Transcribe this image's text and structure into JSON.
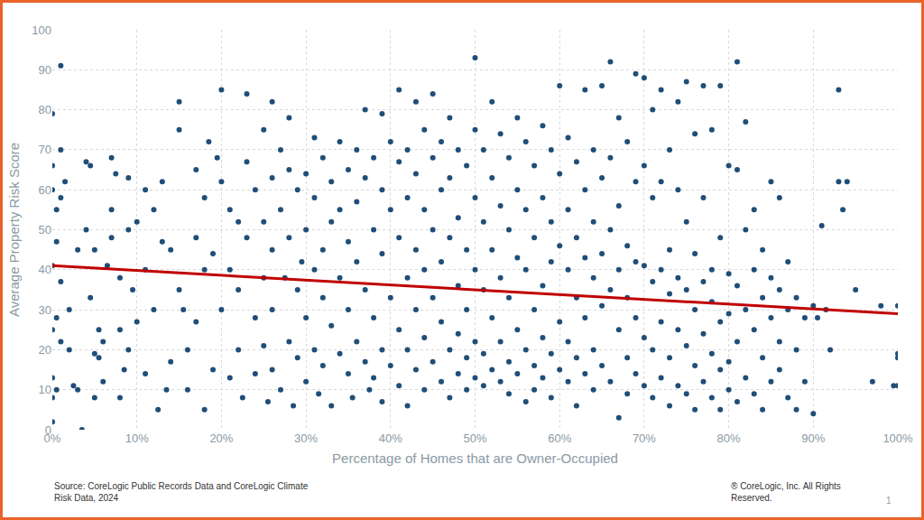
{
  "chart_data": {
    "type": "scatter",
    "x_label": "Percentage of Homes that are Owner-Occupied",
    "y_label": "Average Property Risk Score",
    "xlim": [
      0,
      100
    ],
    "ylim": [
      0,
      100
    ],
    "xticks": [
      {
        "value": 0,
        "label": "0%"
      },
      {
        "value": 10,
        "label": "10%"
      },
      {
        "value": 20,
        "label": "20%"
      },
      {
        "value": 30,
        "label": "30%"
      },
      {
        "value": 40,
        "label": "40%"
      },
      {
        "value": 50,
        "label": "50%"
      },
      {
        "value": 60,
        "label": "60%"
      },
      {
        "value": 70,
        "label": "70%"
      },
      {
        "value": 80,
        "label": "80%"
      },
      {
        "value": 90,
        "label": "90%"
      },
      {
        "value": 100,
        "label": "100%"
      }
    ],
    "yticks": [
      0,
      10,
      20,
      30,
      40,
      50,
      60,
      70,
      80,
      90,
      100
    ],
    "grid": true,
    "source": [
      "Source: CoreLogic Public Records Data and CoreLogic Climate",
      "Risk Data, 2024"
    ],
    "copyright": [
      "® CoreLogic, Inc. All Rights",
      "Reserved."
    ],
    "page": "1",
    "series": [
      {
        "type": "scatter",
        "color": "#1f4e79",
        "marker": "circle",
        "x": [
          0,
          0,
          0,
          0.5,
          1,
          1,
          0.5,
          0,
          1,
          0.5,
          0,
          1,
          0,
          0.5,
          0,
          0,
          1,
          1.5,
          2,
          3.5,
          3,
          2.5,
          4,
          4.5,
          4,
          5,
          4.5,
          5,
          5.5,
          5,
          6,
          6.5,
          7,
          7,
          7.5,
          8,
          8,
          8.5,
          9,
          9.5,
          9,
          10,
          10,
          7,
          6,
          3,
          2,
          5.5,
          8,
          9,
          11,
          11,
          11,
          12,
          12,
          12.5,
          13,
          13,
          13.5,
          14,
          14,
          15,
          15,
          15,
          15.5,
          16,
          16,
          17,
          17,
          17,
          18,
          18,
          18,
          18.5,
          19,
          19,
          19.5,
          20,
          20,
          20,
          21,
          21,
          21,
          22,
          22,
          22,
          22.5,
          23,
          23,
          23,
          24,
          24,
          24,
          25,
          25,
          25,
          25,
          25.5,
          26,
          26,
          26,
          26,
          26,
          27,
          27,
          27,
          27.5,
          28,
          28,
          28,
          28,
          28.5,
          29,
          29,
          29,
          29.5,
          30,
          30,
          30,
          30,
          31,
          31,
          31,
          31,
          31.5,
          32,
          32,
          32,
          32,
          33,
          33,
          33,
          33,
          34,
          34,
          34,
          34,
          35,
          35,
          35,
          35,
          35.5,
          36,
          36,
          36,
          36,
          37,
          37,
          37,
          37,
          37.5,
          38,
          38,
          38,
          38,
          39,
          39,
          39,
          39,
          39,
          40,
          40,
          40,
          40,
          41,
          41,
          41,
          41,
          41,
          42,
          42,
          42,
          42,
          42,
          43,
          43,
          43,
          43,
          43,
          44,
          44,
          44,
          44,
          44,
          45,
          45,
          45,
          45,
          45,
          46,
          46,
          46,
          46,
          46,
          47,
          47,
          47,
          47,
          47,
          48,
          48,
          48,
          48,
          48,
          49,
          49,
          49,
          49,
          49,
          50,
          50,
          50,
          50,
          50,
          50,
          51,
          51,
          51,
          51,
          51,
          52,
          52,
          52,
          52,
          52,
          53,
          53,
          53,
          53,
          53,
          54,
          54,
          54,
          54,
          54,
          55,
          55,
          55,
          55,
          55,
          56,
          56,
          56,
          56,
          56,
          57,
          57,
          57,
          57,
          57,
          58,
          58,
          58,
          58,
          58,
          59,
          59,
          59,
          59,
          59,
          60,
          60,
          60,
          60,
          60,
          61,
          61,
          61,
          61,
          61,
          62,
          62,
          62,
          62,
          62,
          63,
          63,
          63,
          63,
          63,
          64,
          64,
          64,
          64,
          64,
          65,
          65,
          65,
          65,
          65,
          66,
          66,
          66,
          66,
          66,
          67,
          67,
          67,
          67,
          67,
          68,
          68,
          68,
          68,
          68,
          69,
          69,
          69,
          69,
          69,
          70,
          70,
          70,
          70,
          70,
          71,
          71,
          71,
          71,
          71,
          72,
          72,
          72,
          72,
          72,
          73,
          73,
          73,
          73,
          73,
          74,
          74,
          74,
          74,
          74,
          75,
          75,
          75,
          75,
          75,
          76,
          76,
          76,
          76,
          76,
          77,
          77,
          77,
          77,
          77,
          78,
          78,
          78,
          78,
          78,
          79,
          79,
          79,
          79,
          79,
          80,
          80,
          80,
          80,
          80,
          81,
          81,
          81,
          81,
          81,
          82,
          82,
          82,
          82,
          83,
          83,
          83,
          83,
          84,
          84,
          84,
          84,
          85,
          85,
          85,
          85,
          86,
          86,
          86,
          86,
          87,
          87,
          87,
          88,
          88,
          88,
          89,
          89,
          90,
          90,
          90.5,
          91,
          91.5,
          92,
          93,
          93,
          93.5,
          94,
          95,
          97,
          98,
          99.5,
          100,
          100,
          100,
          100
        ],
        "values": [
          79,
          66,
          60,
          55,
          91,
          70,
          47,
          41,
          37,
          28,
          25,
          22,
          13,
          10,
          8,
          2,
          58,
          62,
          30,
          0,
          10,
          11,
          67,
          66,
          50,
          45,
          33,
          19,
          18,
          8,
          12,
          41,
          55,
          68,
          64,
          38,
          25,
          15,
          50,
          35,
          20,
          52,
          27,
          48,
          22,
          45,
          20,
          25,
          8,
          63,
          40,
          60,
          14,
          55,
          30,
          5,
          47,
          62,
          10,
          45,
          17,
          82,
          75,
          35,
          30,
          20,
          10,
          65,
          48,
          27,
          58,
          40,
          5,
          72,
          44,
          15,
          68,
          85,
          62,
          30,
          55,
          40,
          13,
          52,
          35,
          20,
          8,
          67,
          48,
          84,
          60,
          28,
          14,
          75,
          52,
          38,
          21,
          7,
          82,
          63,
          45,
          30,
          15,
          70,
          55,
          10,
          38,
          78,
          65,
          48,
          22,
          6,
          60,
          35,
          18,
          42,
          64,
          50,
          28,
          12,
          73,
          58,
          40,
          20,
          9,
          68,
          45,
          33,
          16,
          62,
          52,
          26,
          6,
          72,
          55,
          38,
          19,
          65,
          47,
          30,
          14,
          8,
          70,
          57,
          42,
          22,
          80,
          63,
          35,
          17,
          10,
          68,
          50,
          28,
          13,
          79,
          60,
          44,
          20,
          7,
          72,
          55,
          33,
          16,
          85,
          67,
          48,
          25,
          11,
          70,
          58,
          38,
          20,
          6,
          82,
          64,
          45,
          30,
          15,
          75,
          55,
          40,
          23,
          10,
          84,
          68,
          50,
          33,
          17,
          72,
          60,
          42,
          27,
          12,
          78,
          63,
          48,
          20,
          8,
          70,
          53,
          36,
          24,
          14,
          66,
          45,
          30,
          18,
          10,
          93,
          75,
          58,
          40,
          22,
          13,
          70,
          52,
          35,
          19,
          11,
          82,
          63,
          45,
          28,
          15,
          74,
          56,
          38,
          22,
          12,
          68,
          50,
          33,
          17,
          9,
          78,
          60,
          43,
          25,
          14,
          72,
          55,
          40,
          20,
          7,
          66,
          48,
          30,
          16,
          10,
          76,
          58,
          36,
          23,
          13,
          70,
          52,
          42,
          19,
          8,
          86,
          64,
          46,
          27,
          15,
          73,
          55,
          40,
          22,
          12,
          67,
          48,
          33,
          18,
          6,
          85,
          60,
          43,
          28,
          14,
          70,
          52,
          38,
          20,
          10,
          86,
          63,
          44,
          31,
          16,
          92,
          68,
          50,
          35,
          12,
          78,
          56,
          40,
          25,
          3,
          72,
          46,
          33,
          18,
          9,
          89,
          62,
          42,
          28,
          14,
          88,
          66,
          41,
          23,
          11,
          80,
          58,
          37,
          20,
          8,
          85,
          62,
          40,
          27,
          13,
          70,
          45,
          34,
          18,
          6,
          82,
          60,
          38,
          25,
          11,
          87,
          52,
          35,
          21,
          9,
          74,
          44,
          30,
          16,
          5,
          86,
          58,
          37,
          24,
          12,
          75,
          40,
          32,
          19,
          8,
          86,
          48,
          27,
          15,
          5,
          66,
          39,
          29,
          17,
          10,
          92,
          65,
          36,
          22,
          7,
          77,
          50,
          30,
          13,
          55,
          40,
          25,
          9,
          45,
          33,
          18,
          5,
          62,
          38,
          28,
          12,
          58,
          35,
          22,
          15,
          42,
          30,
          8,
          33,
          20,
          5,
          28,
          12,
          31,
          4,
          28,
          51,
          30,
          20,
          85,
          62,
          55,
          62,
          35,
          12,
          31,
          11,
          18,
          19,
          31,
          11
        ]
      },
      {
        "type": "line",
        "color": "#c00000",
        "line_style": "solid",
        "x": [
          0,
          100
        ],
        "values": [
          41,
          29
        ]
      }
    ]
  }
}
